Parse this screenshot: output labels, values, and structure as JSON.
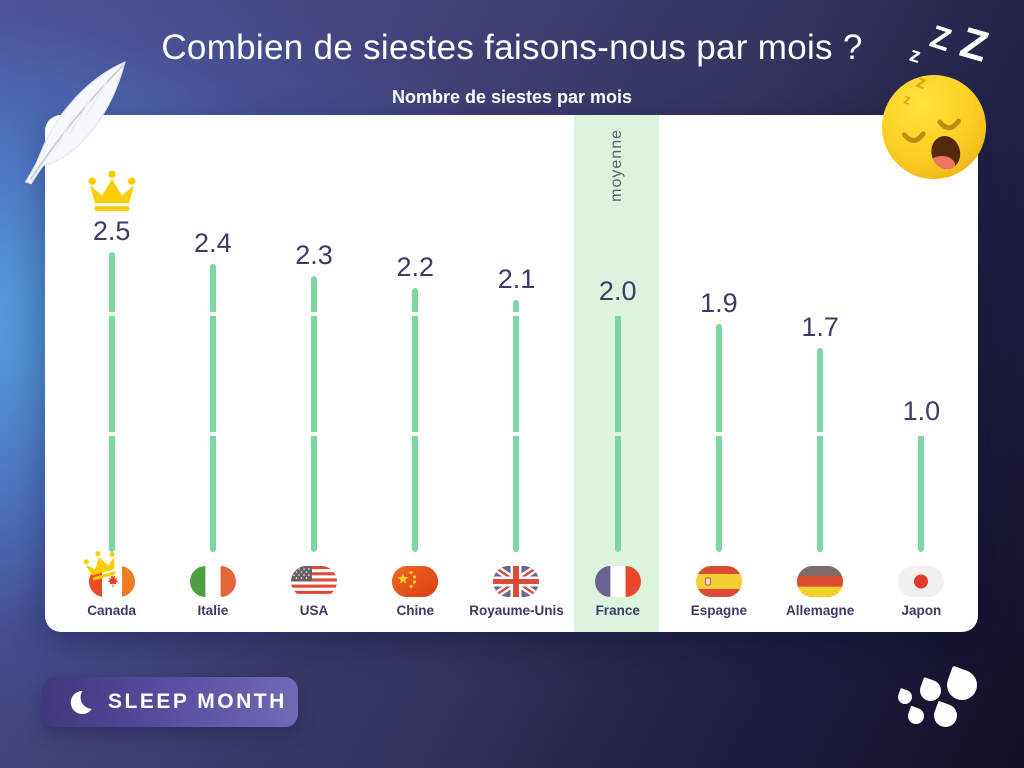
{
  "header": {
    "title": "Combien de siestes faisons-nous par mois ?",
    "subtitle": "Nombre de siestes par mois"
  },
  "chart_data": {
    "type": "bar",
    "title": "Combien de siestes faisons-nous par mois ?",
    "subtitle": "Nombre de siestes par mois",
    "categories": [
      "Canada",
      "Italie",
      "USA",
      "Chine",
      "Royaume-Unis",
      "France",
      "Espagne",
      "Allemagne",
      "Japon"
    ],
    "values": [
      2.5,
      2.4,
      2.3,
      2.2,
      2.1,
      2.0,
      1.9,
      1.7,
      1.0
    ],
    "value_labels": [
      "2.5",
      "2.4",
      "2.3",
      "2.2",
      "2.1",
      "2.0",
      "1.9",
      "1.7",
      "1.0"
    ],
    "ylim": [
      0,
      2.5
    ],
    "grid": "off",
    "legend": "none",
    "highlight": {
      "category": "France",
      "label": "moyenne",
      "band_color": "#dcf4de"
    },
    "winner": {
      "category": "Canada",
      "badge": "crown"
    },
    "bar_color": "#7dd7a1",
    "label_color": "#3c3b63"
  },
  "footer": {
    "badge_label": "SLEEP MONTH"
  },
  "decor": {
    "zzz_letters": [
      "z",
      "Z",
      "Z"
    ],
    "face_z_letters": [
      "z",
      "z"
    ],
    "crown_color": "#fccd00"
  }
}
